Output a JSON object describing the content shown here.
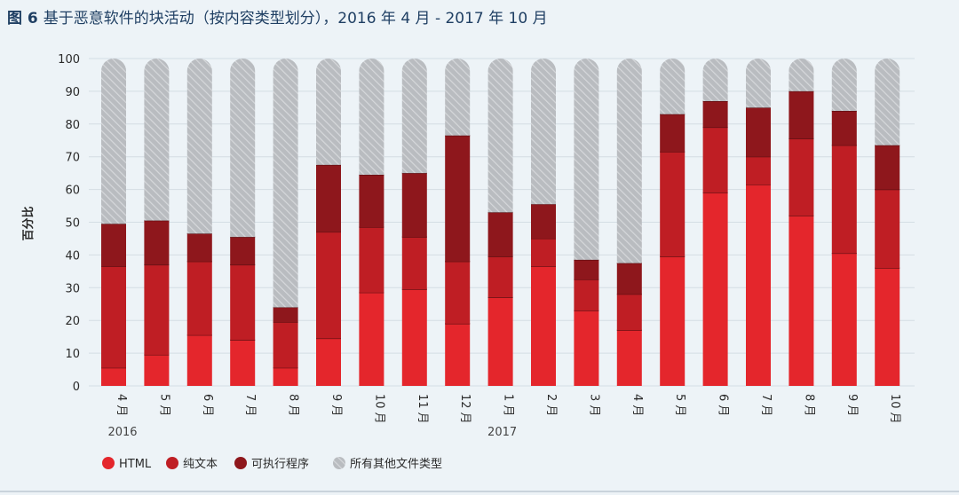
{
  "header": {
    "fig_label": "图 6",
    "title_text": "基于恶意软件的块活动（按内容类型划分），2016 年 4 月 - 2017 年 10 月"
  },
  "chart_data": {
    "type": "bar",
    "stacked": true,
    "title": "基于恶意软件的块活动（按内容类型划分），2016 年 4 月 - 2017 年 10 月",
    "ylabel": "百分比",
    "xlabel": "",
    "ylim": [
      0,
      100
    ],
    "yticks": [
      0,
      10,
      20,
      30,
      40,
      50,
      60,
      70,
      80,
      90,
      100
    ],
    "categories": [
      "4 月",
      "5 月",
      "6 月",
      "7 月",
      "8 月",
      "9 月",
      "10 月",
      "11 月",
      "12 月",
      "1 月",
      "2 月",
      "3 月",
      "4 月",
      "5 月",
      "6 月",
      "7 月",
      "8 月",
      "9 月",
      "10 月"
    ],
    "year_labels": [
      {
        "label": "2016",
        "start": 0,
        "end": 0
      },
      {
        "label": "2017",
        "start": 9,
        "end": 9
      }
    ],
    "series": [
      {
        "name": "HTML",
        "color": "#e4262c",
        "values": [
          5.5,
          9.5,
          15.5,
          14,
          5.5,
          14.5,
          28.5,
          29.5,
          19,
          27,
          36.5,
          23,
          17,
          39.5,
          59,
          61.5,
          52,
          40.5,
          36
        ]
      },
      {
        "name": "纯文本",
        "color": "#bf1e24",
        "values": [
          31,
          27.5,
          22.5,
          23,
          14,
          32.5,
          20,
          16,
          19,
          12.5,
          8.5,
          9.5,
          11,
          32,
          20,
          8.5,
          23.5,
          33,
          24
        ]
      },
      {
        "name": "可执行程序",
        "color": "#8e171c",
        "values": [
          13,
          13.5,
          8.5,
          8.5,
          4.5,
          20.5,
          16,
          19.5,
          38.5,
          13.5,
          10.5,
          6,
          9.5,
          11.5,
          8,
          15,
          14.5,
          10.5,
          13.5
        ]
      },
      {
        "name": "所有其他文件类型",
        "color": "#b9bcc0",
        "pattern": "diagonal-hatch",
        "values": [
          50.5,
          49.5,
          53.5,
          54.5,
          76,
          32.5,
          35.5,
          35,
          23.5,
          47,
          44.5,
          61.5,
          62.5,
          17,
          13,
          15,
          10,
          16,
          26.5
        ]
      }
    ],
    "legend_position": "bottom-left",
    "grid": true
  }
}
